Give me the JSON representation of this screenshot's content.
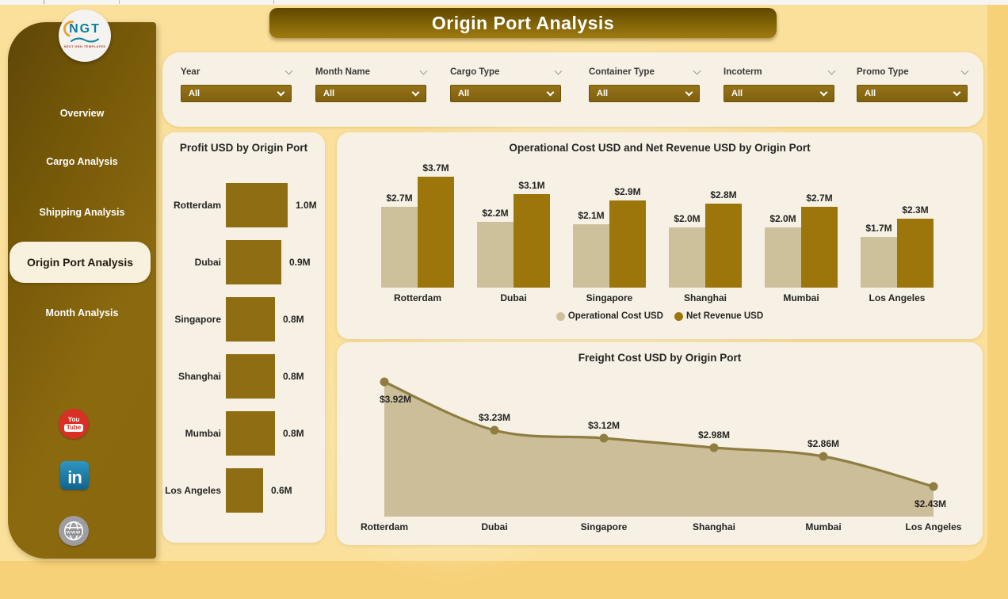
{
  "page": {
    "title_bar": "Origin Port  Analysis"
  },
  "logo": {
    "text": "NGT",
    "subtext": "NEXT GEN TEMPLATES"
  },
  "sidebar": {
    "items": [
      {
        "label": "Overview",
        "active": false
      },
      {
        "label": "Cargo Analysis",
        "active": false
      },
      {
        "label": "Shipping Analysis",
        "active": false
      },
      {
        "label": "Origin Port Analysis",
        "active": true
      },
      {
        "label": "Month Analysis",
        "active": false
      }
    ],
    "social": {
      "youtube": {
        "line1": "You",
        "line2": "Tube"
      },
      "linkedin": {
        "text": "in"
      },
      "website": {
        "text": "www"
      }
    }
  },
  "filters": [
    {
      "label": "Year",
      "value": "All"
    },
    {
      "label": "Month Name",
      "value": "All"
    },
    {
      "label": "Cargo Type",
      "value": "All"
    },
    {
      "label": "Container Type",
      "value": "All"
    },
    {
      "label": "Incoterm",
      "value": "All"
    },
    {
      "label": "Promo Type",
      "value": "All"
    }
  ],
  "colors": {
    "canvas": "#FBE09C",
    "panel": "#F6F1E4",
    "sidebar_gold": "#8A680E",
    "slicer_gold": "#8A6A12",
    "bar_tan": "#CDC19C",
    "bar_gold": "#9C760A",
    "profit_bar": "#8F6D12",
    "area_fill": "#C8BB93",
    "area_line": "#8F7D42"
  },
  "chart_data": [
    {
      "type": "bar",
      "orientation": "horizontal",
      "title": "Profit USD by Origin Port",
      "categories": [
        "Rotterdam",
        "Dubai",
        "Singapore",
        "Shanghai",
        "Mumbai",
        "Los Angeles"
      ],
      "values": [
        1.0,
        0.9,
        0.8,
        0.8,
        0.8,
        0.6
      ],
      "labels": [
        "1.0M",
        "0.9M",
        "0.8M",
        "0.8M",
        "0.8M",
        "0.6M"
      ],
      "xlabel": "",
      "ylabel": "",
      "xlim": [
        0,
        1.05
      ],
      "bar_color": "#8F6D12",
      "grid": false
    },
    {
      "type": "bar",
      "orientation": "vertical",
      "grouped": true,
      "title": "Operational Cost USD and Net Revenue USD by Origin Port",
      "categories": [
        "Rotterdam",
        "Dubai",
        "Singapore",
        "Shanghai",
        "Mumbai",
        "Los Angeles"
      ],
      "series": [
        {
          "name": "Operational Cost USD",
          "color": "#CDC19C",
          "values": [
            2.7,
            2.2,
            2.1,
            2.0,
            2.0,
            1.7
          ],
          "labels": [
            "$2.7M",
            "$2.2M",
            "$2.1M",
            "$2.0M",
            "$2.0M",
            "$1.7M"
          ]
        },
        {
          "name": "Net Revenue USD",
          "color": "#9C760A",
          "values": [
            3.7,
            3.1,
            2.9,
            2.8,
            2.7,
            2.3
          ],
          "labels": [
            "$3.7M",
            "$3.1M",
            "$2.9M",
            "$2.8M",
            "$2.7M",
            "$2.3M"
          ]
        }
      ],
      "ylim": [
        0,
        4.3
      ],
      "legend_position": "bottom",
      "grid": false
    },
    {
      "type": "area",
      "title": "Freight Cost USD by Origin Port",
      "categories": [
        "Rotterdam",
        "Dubai",
        "Singapore",
        "Shanghai",
        "Mumbai",
        "Los Angeles"
      ],
      "values": [
        3.92,
        3.23,
        3.12,
        2.98,
        2.86,
        2.43
      ],
      "labels": [
        "$3.92M",
        "$3.23M",
        "$3.12M",
        "$2.98M",
        "$2.86M",
        "$2.43M"
      ],
      "ylim": [
        2.0,
        4.3
      ],
      "line_color": "#8F7D42",
      "fill_color": "#C8BB93",
      "grid": false
    }
  ]
}
